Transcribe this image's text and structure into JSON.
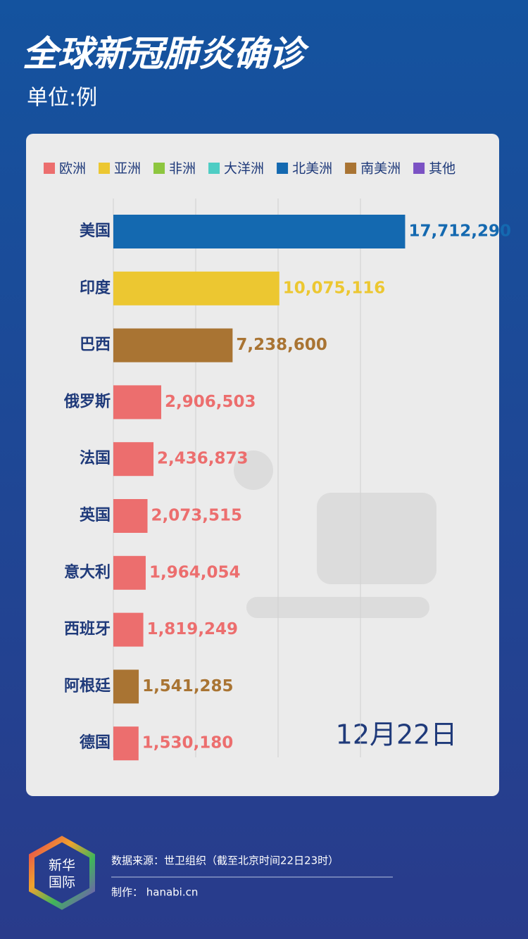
{
  "chart_data": {
    "type": "barh",
    "title": "全球新冠肺炎确诊",
    "subtitle": "单位:例",
    "date_label": "12月22日",
    "legend": [
      {
        "name": "欧洲",
        "color": "#ec6e6e"
      },
      {
        "name": "亚洲",
        "color": "#ecc731"
      },
      {
        "name": "非洲",
        "color": "#8dc63f"
      },
      {
        "name": "大洋洲",
        "color": "#4ecdc4"
      },
      {
        "name": "北美洲",
        "color": "#1469b0"
      },
      {
        "name": "南美洲",
        "color": "#a97433"
      },
      {
        "name": "其他",
        "color": "#7b52c4"
      }
    ],
    "categories": [
      "美国",
      "印度",
      "巴西",
      "俄罗斯",
      "法国",
      "英国",
      "意大利",
      "西班牙",
      "阿根廷",
      "德国"
    ],
    "values": [
      17712290,
      10075116,
      7238600,
      2906503,
      2436873,
      2073515,
      1964054,
      1819249,
      1541285,
      1530180
    ],
    "value_labels": [
      "17,712,290",
      "10,075,116",
      "7,238,600",
      "2,906,503",
      "2,436,873",
      "2,073,515",
      "1,964,054",
      "1,819,249",
      "1,541,285",
      "1,530,180"
    ],
    "colors": [
      "#1469b0",
      "#ecc731",
      "#a97433",
      "#ec6e6e",
      "#ec6e6e",
      "#ec6e6e",
      "#ec6e6e",
      "#ec6e6e",
      "#a97433",
      "#ec6e6e"
    ],
    "xlim": [
      0,
      20000000
    ],
    "xticks": [
      0,
      5000000,
      10000000,
      15000000
    ],
    "grid": true
  },
  "footer": {
    "logo_top": "新华",
    "logo_bottom": "国际",
    "source": "数据来源：世卫组织（截至北京时间22日23时）",
    "credit": "制作： hanabi.cn"
  }
}
